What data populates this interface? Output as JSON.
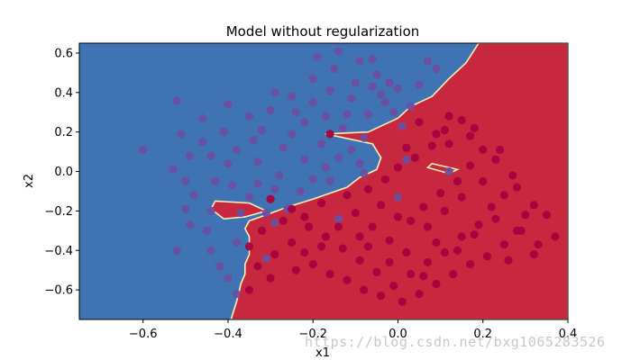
{
  "chart_data": {
    "type": "scatter",
    "title": "Model without regularization",
    "xlabel": "x1",
    "ylabel": "x2",
    "xlim": [
      -0.75,
      0.4
    ],
    "ylim": [
      -0.75,
      0.65
    ],
    "xticks": [
      -0.6,
      -0.4,
      -0.2,
      0.0,
      0.2,
      0.4
    ],
    "yticks": [
      -0.6,
      -0.4,
      -0.2,
      0.0,
      0.2,
      0.4,
      0.6
    ],
    "xtick_labels": [
      "−0.6",
      "−0.4",
      "−0.2",
      "0.0",
      "0.2",
      "0.4"
    ],
    "ytick_labels": [
      "−0.6",
      "−0.4",
      "−0.2",
      "0.0",
      "0.2",
      "0.4",
      "0.6"
    ],
    "grid": false,
    "background_regions": {
      "class_0_color": "#3f73b4",
      "class_1_color": "#c8283f",
      "boundary_color": "#f7f2b0",
      "class_1_polygon": [
        [
          0.19,
          0.65
        ],
        [
          0.4,
          0.65
        ],
        [
          0.4,
          -0.75
        ],
        [
          -0.393,
          -0.75
        ],
        [
          -0.38,
          -0.66
        ],
        [
          -0.375,
          -0.62
        ],
        [
          -0.37,
          -0.57
        ],
        [
          -0.36,
          -0.52
        ],
        [
          -0.36,
          -0.47
        ],
        [
          -0.35,
          -0.42
        ],
        [
          -0.35,
          -0.33
        ],
        [
          -0.36,
          -0.29
        ],
        [
          -0.35,
          -0.25
        ],
        [
          -0.31,
          -0.22
        ],
        [
          -0.26,
          -0.18
        ],
        [
          -0.2,
          -0.14
        ],
        [
          -0.12,
          -0.08
        ],
        [
          -0.09,
          -0.03
        ],
        [
          -0.05,
          0.01
        ],
        [
          -0.04,
          0.07
        ],
        [
          -0.06,
          0.14
        ],
        [
          -0.17,
          0.19
        ],
        [
          -0.07,
          0.2
        ],
        [
          0.0,
          0.27
        ],
        [
          0.03,
          0.33
        ],
        [
          0.08,
          0.38
        ],
        [
          0.12,
          0.47
        ],
        [
          0.16,
          0.55
        ]
      ],
      "class_1_islands": [
        [
          [
            -0.43,
            -0.15
          ],
          [
            -0.35,
            -0.16
          ],
          [
            -0.31,
            -0.2
          ],
          [
            -0.36,
            -0.23
          ],
          [
            -0.41,
            -0.24
          ],
          [
            -0.44,
            -0.19
          ]
        ],
        [
          [
            0.08,
            0.04
          ],
          [
            0.14,
            0.01
          ],
          [
            0.12,
            -0.01
          ],
          [
            0.07,
            0.02
          ]
        ]
      ]
    },
    "series": [
      {
        "class": 0,
        "color": "#6c4ea0",
        "points": [
          [
            -0.6,
            0.11
          ],
          [
            -0.52,
            0.36
          ],
          [
            -0.51,
            0.19
          ],
          [
            -0.49,
            0.08
          ],
          [
            -0.53,
            0.01
          ],
          [
            -0.5,
            -0.05
          ],
          [
            -0.48,
            -0.12
          ],
          [
            -0.5,
            -0.19
          ],
          [
            -0.49,
            -0.27
          ],
          [
            -0.52,
            -0.4
          ],
          [
            -0.46,
            0.27
          ],
          [
            -0.44,
            0.08
          ],
          [
            -0.43,
            -0.05
          ],
          [
            -0.41,
            0.2
          ],
          [
            -0.4,
            0.34
          ],
          [
            -0.38,
            0.11
          ],
          [
            -0.35,
            0.28
          ],
          [
            -0.32,
            0.21
          ],
          [
            -0.33,
            0.05
          ],
          [
            -0.3,
            0.31
          ],
          [
            -0.29,
            0.4
          ],
          [
            -0.27,
            0.12
          ],
          [
            -0.25,
            0.19
          ],
          [
            -0.24,
            0.3
          ],
          [
            -0.22,
            0.25
          ],
          [
            -0.22,
            0.06
          ],
          [
            -0.2,
            0.35
          ],
          [
            -0.2,
            0.47
          ],
          [
            -0.18,
            0.14
          ],
          [
            -0.17,
            0.28
          ],
          [
            -0.16,
            0.41
          ],
          [
            -0.15,
            0.52
          ],
          [
            -0.13,
            0.22
          ],
          [
            -0.12,
            0.29
          ],
          [
            -0.11,
            0.37
          ],
          [
            -0.1,
            0.45
          ],
          [
            -0.09,
            0.56
          ],
          [
            -0.08,
            0.17
          ],
          [
            -0.07,
            0.29
          ],
          [
            -0.06,
            0.43
          ],
          [
            -0.05,
            0.49
          ],
          [
            -0.04,
            0.39
          ],
          [
            -0.03,
            0.35
          ],
          [
            -0.02,
            0.45
          ],
          [
            -0.01,
            0.3
          ],
          [
            0.0,
            0.42
          ],
          [
            0.01,
            0.23
          ],
          [
            0.03,
            0.33
          ],
          [
            0.05,
            0.44
          ],
          [
            0.07,
            0.56
          ],
          [
            0.09,
            0.52
          ],
          [
            -0.19,
            0.58
          ],
          [
            -0.14,
            0.61
          ],
          [
            -0.06,
            0.57
          ],
          [
            -0.25,
            0.38
          ],
          [
            -0.28,
            -0.02
          ],
          [
            -0.29,
            -0.09
          ],
          [
            -0.26,
            -0.19
          ],
          [
            -0.23,
            -0.1
          ],
          [
            -0.2,
            -0.04
          ],
          [
            -0.17,
            0.02
          ],
          [
            -0.14,
            0.07
          ],
          [
            -0.11,
            0.11
          ],
          [
            -0.09,
            0.04
          ],
          [
            -0.35,
            -0.13
          ],
          [
            -0.33,
            -0.06
          ],
          [
            -0.37,
            -0.21
          ],
          [
            -0.44,
            -0.2
          ],
          [
            -0.42,
            -0.48
          ],
          [
            -0.44,
            -0.4
          ],
          [
            -0.4,
            -0.54
          ],
          [
            -0.31,
            -0.44
          ],
          [
            -0.38,
            -0.36
          ],
          [
            -0.45,
            -0.3
          ],
          [
            -0.38,
            -0.62
          ],
          [
            -0.29,
            -0.26
          ],
          [
            0.0,
            -0.13
          ],
          [
            -0.14,
            -0.24
          ],
          [
            0.02,
            0.06
          ],
          [
            -0.39,
            -0.07
          ],
          [
            -0.16,
            -0.05
          ],
          [
            -0.4,
            0.04
          ],
          [
            -0.34,
            0.16
          ],
          [
            -0.46,
            0.15
          ],
          [
            -0.31,
            -0.21
          ],
          [
            -0.08,
            -0.01
          ],
          [
            0.12,
            0.0
          ]
        ]
      },
      {
        "class": 1,
        "color": "#a6003f",
        "points": [
          [
            -0.16,
            0.19
          ],
          [
            -0.3,
            -0.14
          ],
          [
            -0.25,
            -0.19
          ],
          [
            -0.22,
            -0.23
          ],
          [
            -0.18,
            -0.16
          ],
          [
            -0.12,
            -0.12
          ],
          [
            -0.07,
            -0.09
          ],
          [
            -0.03,
            -0.04
          ],
          [
            0.0,
            0.02
          ],
          [
            0.04,
            0.07
          ],
          [
            0.08,
            0.13
          ],
          [
            0.11,
            0.21
          ],
          [
            0.15,
            0.26
          ],
          [
            0.17,
            0.18
          ],
          [
            0.2,
            0.11
          ],
          [
            0.23,
            0.06
          ],
          [
            0.27,
            -0.02
          ],
          [
            0.25,
            -0.12
          ],
          [
            0.22,
            -0.18
          ],
          [
            0.19,
            -0.27
          ],
          [
            0.15,
            -0.33
          ],
          [
            0.11,
            -0.41
          ],
          [
            0.07,
            -0.46
          ],
          [
            0.03,
            -0.52
          ],
          [
            -0.01,
            -0.58
          ],
          [
            -0.05,
            -0.51
          ],
          [
            -0.09,
            -0.45
          ],
          [
            -0.13,
            -0.39
          ],
          [
            -0.17,
            -0.33
          ],
          [
            -0.21,
            -0.28
          ],
          [
            -0.25,
            -0.36
          ],
          [
            -0.29,
            -0.42
          ],
          [
            -0.33,
            -0.48
          ],
          [
            -0.35,
            -0.38
          ],
          [
            -0.32,
            -0.3
          ],
          [
            -0.27,
            -0.25
          ],
          [
            -0.35,
            -0.6
          ],
          [
            -0.3,
            -0.54
          ],
          [
            -0.24,
            -0.5
          ],
          [
            -0.2,
            -0.47
          ],
          [
            -0.16,
            -0.52
          ],
          [
            -0.12,
            -0.55
          ],
          [
            -0.08,
            -0.6
          ],
          [
            -0.04,
            -0.63
          ],
          [
            0.01,
            -0.66
          ],
          [
            0.05,
            -0.62
          ],
          [
            0.09,
            -0.57
          ],
          [
            0.13,
            -0.52
          ],
          [
            0.17,
            -0.47
          ],
          [
            0.21,
            -0.43
          ],
          [
            0.25,
            -0.37
          ],
          [
            0.28,
            -0.3
          ],
          [
            0.3,
            -0.22
          ],
          [
            0.32,
            -0.17
          ],
          [
            0.28,
            -0.08
          ],
          [
            0.35,
            -0.22
          ],
          [
            0.37,
            -0.33
          ],
          [
            0.33,
            -0.37
          ],
          [
            0.32,
            -0.42
          ],
          [
            0.26,
            -0.45
          ],
          [
            0.03,
            -0.25
          ],
          [
            0.06,
            -0.18
          ],
          [
            0.1,
            -0.11
          ],
          [
            0.14,
            -0.05
          ],
          [
            0.17,
            0.03
          ],
          [
            0.07,
            -0.28
          ],
          [
            0.11,
            -0.2
          ],
          [
            0.15,
            -0.13
          ],
          [
            -0.02,
            -0.35
          ],
          [
            0.02,
            -0.41
          ],
          [
            -0.06,
            -0.28
          ],
          [
            -0.1,
            -0.21
          ],
          [
            -0.14,
            -0.28
          ],
          [
            -0.04,
            -0.17
          ],
          [
            0.0,
            -0.23
          ],
          [
            0.12,
            0.14
          ],
          [
            0.09,
            0.19
          ],
          [
            0.02,
            0.12
          ],
          [
            0.05,
            0.25
          ],
          [
            0.12,
            0.28
          ],
          [
            0.18,
            0.22
          ],
          [
            0.2,
            -0.05
          ],
          [
            0.23,
            -0.24
          ],
          [
            0.18,
            -0.32
          ],
          [
            -0.09,
            -0.33
          ],
          [
            -0.18,
            -0.38
          ],
          [
            -0.22,
            -0.41
          ],
          [
            0.09,
            -0.36
          ],
          [
            0.29,
            -0.3
          ],
          [
            0.24,
            0.11
          ],
          [
            0.14,
            -0.4
          ],
          [
            0.06,
            -0.53
          ],
          [
            -0.02,
            -0.46
          ],
          [
            -0.07,
            -0.38
          ]
        ]
      }
    ]
  },
  "watermark": "https://blog.csdn.net/bxg1065283526"
}
